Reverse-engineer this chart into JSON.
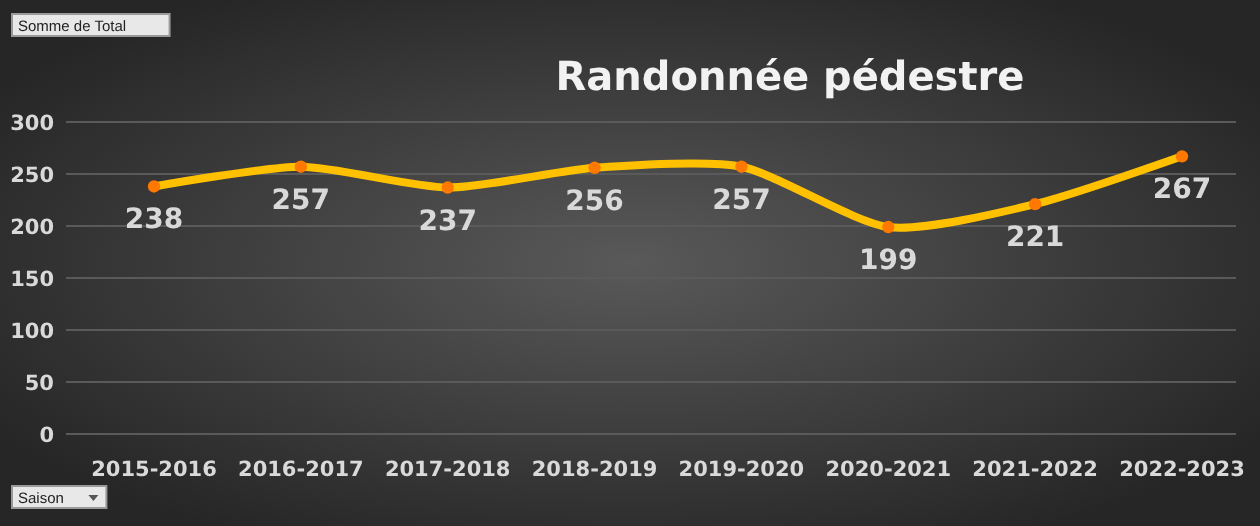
{
  "chart_data": {
    "type": "line",
    "title": "Randonnée pédestre",
    "categories": [
      "2015-2016",
      "2016-2017",
      "2017-2018",
      "2018-2019",
      "2019-2020",
      "2020-2021",
      "2021-2022",
      "2022-2023"
    ],
    "series": [
      {
        "color": "#ffc000",
        "values": [
          238,
          257,
          237,
          256,
          257,
          199,
          221,
          267
        ]
      }
    ],
    "ylim": [
      0,
      300
    ],
    "yticks": [
      0,
      50,
      100,
      150,
      200,
      250,
      300
    ],
    "grid": "y",
    "marker": "circle",
    "line_style": "solid",
    "data_labels": true,
    "annotations": [
      "Somme de Total",
      "Saison"
    ]
  }
}
